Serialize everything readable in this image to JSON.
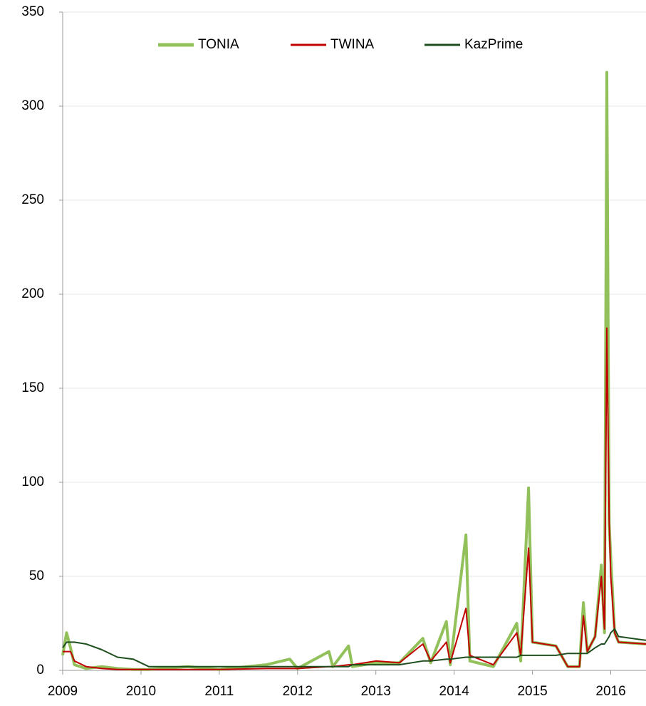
{
  "chart_data": {
    "type": "line",
    "x": [
      2009.0,
      2009.05,
      2009.1,
      2009.15,
      2009.3,
      2009.5,
      2009.7,
      2009.9,
      2010.1,
      2010.6,
      2011.0,
      2011.6,
      2011.9,
      2012.0,
      2012.4,
      2012.45,
      2012.65,
      2012.7,
      2013.0,
      2013.3,
      2013.6,
      2013.7,
      2013.9,
      2013.95,
      2014.15,
      2014.2,
      2014.5,
      2014.8,
      2014.85,
      2014.95,
      2015.0,
      2015.3,
      2015.45,
      2015.6,
      2015.65,
      2015.7,
      2015.8,
      2015.88,
      2015.92,
      2015.95,
      2015.98,
      2016.0,
      2016.05,
      2016.1,
      2016.45
    ],
    "series": [
      {
        "name": "TONIA",
        "color": "#92c05a",
        "width": 4,
        "values": [
          8,
          20,
          12,
          3,
          1,
          2,
          1,
          0.5,
          0.5,
          2,
          0.5,
          3,
          6,
          1,
          10,
          2,
          13,
          2,
          4,
          4,
          17,
          4,
          26,
          3,
          72,
          5,
          2,
          25,
          5,
          97,
          15,
          13,
          2,
          2,
          36,
          10,
          18,
          56,
          20,
          318,
          78,
          60,
          20,
          15,
          14
        ]
      },
      {
        "name": "TWINA",
        "color": "#c00000",
        "width": 2,
        "values": [
          10,
          10,
          10,
          5,
          2,
          1,
          0.5,
          0.5,
          0.5,
          0.5,
          0.5,
          1,
          1,
          1,
          2,
          2,
          3,
          3,
          5,
          4,
          14,
          5,
          15,
          4,
          33,
          8,
          3,
          20,
          8,
          65,
          15,
          13,
          2,
          2,
          29,
          10,
          18,
          50,
          22,
          182,
          80,
          50,
          20,
          15,
          14
        ]
      },
      {
        "name": "KazPrime",
        "color": "#1e4d1e",
        "width": 2,
        "values": [
          12,
          15,
          15,
          15,
          14,
          11,
          7,
          6,
          2,
          2,
          2,
          2,
          2,
          2,
          2,
          2,
          2,
          3,
          3,
          3,
          5,
          5,
          6,
          6,
          7,
          7,
          7,
          7,
          8,
          8,
          8,
          8,
          9,
          9,
          9,
          9,
          12,
          14,
          14,
          16,
          18,
          20,
          22,
          18,
          16
        ]
      }
    ],
    "xlim": [
      2009,
      2016.45
    ],
    "xticks": [
      2009,
      2010,
      2011,
      2012,
      2013,
      2014,
      2015,
      2016
    ],
    "ylim": [
      0,
      350
    ],
    "yticks": [
      0,
      50,
      100,
      150,
      200,
      250,
      300,
      350
    ],
    "grid": true,
    "legend": "top"
  }
}
